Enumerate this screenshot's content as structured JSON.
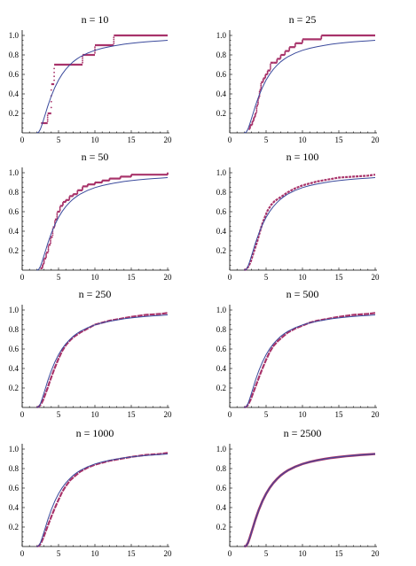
{
  "colors": {
    "theory": "#3b4a9c",
    "empirical": "#a8336a",
    "axis": "#000000"
  },
  "chart_data": [
    {
      "type": "line",
      "title": "n = 10",
      "xlim": [
        0,
        20
      ],
      "ylim": [
        0,
        1.0
      ],
      "xticks": [
        0,
        5,
        10,
        15,
        20
      ],
      "yticks": [
        0.2,
        0.4,
        0.6,
        0.8,
        1.0
      ],
      "xtick_labels": [
        "0",
        "5",
        "10",
        "15",
        "20"
      ],
      "ytick_labels": [
        "0.2",
        "0.4",
        "0.6",
        "0.8",
        "1.0"
      ],
      "theory": {
        "x": [
          2.0,
          2.25,
          2.5,
          2.75,
          3.0,
          3.25,
          3.5,
          3.75,
          4.0,
          4.5,
          5.0,
          5.5,
          6.0,
          6.5,
          7.0,
          7.5,
          8.0,
          9.0,
          10.0,
          11.0,
          12.0,
          13.0,
          14.0,
          15.0,
          16.0,
          17.0,
          18.0,
          19.0,
          20.0
        ],
        "y": [
          0.0,
          0.006,
          0.037,
          0.088,
          0.149,
          0.21,
          0.27,
          0.326,
          0.377,
          0.467,
          0.542,
          0.603,
          0.653,
          0.694,
          0.729,
          0.757,
          0.782,
          0.819,
          0.847,
          0.868,
          0.885,
          0.898,
          0.91,
          0.919,
          0.927,
          0.934,
          0.94,
          0.945,
          0.95
        ]
      },
      "empirical": {
        "x": [
          2.6,
          3.5,
          4.0,
          4.4,
          8.3,
          10.0,
          12.6,
          20.0
        ],
        "y": [
          0.1,
          0.2,
          0.5,
          0.7,
          0.8,
          0.9,
          1.0,
          1.0
        ]
      }
    },
    {
      "type": "line",
      "title": "n = 25",
      "xlim": [
        0,
        20
      ],
      "ylim": [
        0,
        1.0
      ],
      "xticks": [
        0,
        5,
        10,
        15,
        20
      ],
      "yticks": [
        0.2,
        0.4,
        0.6,
        0.8,
        1.0
      ],
      "xtick_labels": [
        "0",
        "5",
        "10",
        "15",
        "20"
      ],
      "ytick_labels": [
        "0.2",
        "0.4",
        "0.6",
        "0.8",
        "1.0"
      ],
      "theory": {
        "x": [
          2.0,
          2.25,
          2.5,
          2.75,
          3.0,
          3.25,
          3.5,
          3.75,
          4.0,
          4.5,
          5.0,
          5.5,
          6.0,
          6.5,
          7.0,
          7.5,
          8.0,
          9.0,
          10.0,
          11.0,
          12.0,
          13.0,
          14.0,
          15.0,
          16.0,
          17.0,
          18.0,
          19.0,
          20.0
        ],
        "y": [
          0.0,
          0.006,
          0.037,
          0.088,
          0.149,
          0.21,
          0.27,
          0.326,
          0.377,
          0.467,
          0.542,
          0.603,
          0.653,
          0.694,
          0.729,
          0.757,
          0.782,
          0.819,
          0.847,
          0.868,
          0.885,
          0.898,
          0.91,
          0.919,
          0.927,
          0.934,
          0.94,
          0.945,
          0.95
        ]
      },
      "empirical": {
        "x": [
          2.6,
          2.8,
          3.1,
          3.3,
          3.5,
          3.7,
          3.9,
          4.1,
          4.3,
          4.6,
          4.9,
          5.2,
          5.6,
          6.0,
          6.5,
          7.0,
          7.6,
          8.2,
          9.0,
          10.0,
          12.6,
          20.0
        ],
        "y": [
          0.04,
          0.08,
          0.12,
          0.16,
          0.2,
          0.28,
          0.36,
          0.44,
          0.52,
          0.56,
          0.6,
          0.64,
          0.72,
          0.72,
          0.76,
          0.8,
          0.84,
          0.88,
          0.92,
          0.96,
          1.0,
          1.0
        ]
      }
    },
    {
      "type": "line",
      "title": "n = 50",
      "xlim": [
        0,
        20
      ],
      "ylim": [
        0,
        1.0
      ],
      "xticks": [
        0,
        5,
        10,
        15,
        20
      ],
      "yticks": [
        0.2,
        0.4,
        0.6,
        0.8,
        1.0
      ],
      "xtick_labels": [
        "0",
        "5",
        "10",
        "15",
        "20"
      ],
      "ytick_labels": [
        "0.2",
        "0.4",
        "0.6",
        "0.8",
        "1.0"
      ],
      "theory": {
        "x": [
          2.0,
          2.25,
          2.5,
          2.75,
          3.0,
          3.25,
          3.5,
          3.75,
          4.0,
          4.5,
          5.0,
          5.5,
          6.0,
          6.5,
          7.0,
          7.5,
          8.0,
          9.0,
          10.0,
          11.0,
          12.0,
          13.0,
          14.0,
          15.0,
          16.0,
          17.0,
          18.0,
          19.0,
          20.0
        ],
        "y": [
          0.0,
          0.006,
          0.037,
          0.088,
          0.149,
          0.21,
          0.27,
          0.326,
          0.377,
          0.467,
          0.542,
          0.603,
          0.653,
          0.694,
          0.729,
          0.757,
          0.782,
          0.819,
          0.847,
          0.868,
          0.885,
          0.898,
          0.91,
          0.919,
          0.927,
          0.934,
          0.94,
          0.945,
          0.95
        ]
      },
      "empirical": {
        "x": [
          2.5,
          2.8,
          3.0,
          3.3,
          3.6,
          3.9,
          4.2,
          4.5,
          4.8,
          5.2,
          5.6,
          6.0,
          6.5,
          7.0,
          7.6,
          8.3,
          9.0,
          10.0,
          11.0,
          12.0,
          13.5,
          15.0,
          20.0
        ],
        "y": [
          0.02,
          0.06,
          0.12,
          0.18,
          0.26,
          0.34,
          0.44,
          0.52,
          0.6,
          0.66,
          0.7,
          0.72,
          0.76,
          0.78,
          0.82,
          0.86,
          0.88,
          0.9,
          0.92,
          0.94,
          0.96,
          0.98,
          1.0
        ]
      }
    },
    {
      "type": "line",
      "title": "n = 100",
      "xlim": [
        0,
        20
      ],
      "ylim": [
        0,
        1.0
      ],
      "xticks": [
        0,
        5,
        10,
        15,
        20
      ],
      "yticks": [
        0.2,
        0.4,
        0.6,
        0.8,
        1.0
      ],
      "xtick_labels": [
        "0",
        "5",
        "10",
        "15",
        "20"
      ],
      "ytick_labels": [
        "0.2",
        "0.4",
        "0.6",
        "0.8",
        "1.0"
      ],
      "theory": {
        "x": [
          2.0,
          2.25,
          2.5,
          2.75,
          3.0,
          3.25,
          3.5,
          3.75,
          4.0,
          4.5,
          5.0,
          5.5,
          6.0,
          6.5,
          7.0,
          7.5,
          8.0,
          9.0,
          10.0,
          11.0,
          12.0,
          13.0,
          14.0,
          15.0,
          16.0,
          17.0,
          18.0,
          19.0,
          20.0
        ],
        "y": [
          0.0,
          0.006,
          0.037,
          0.088,
          0.149,
          0.21,
          0.27,
          0.326,
          0.377,
          0.467,
          0.542,
          0.603,
          0.653,
          0.694,
          0.729,
          0.757,
          0.782,
          0.819,
          0.847,
          0.868,
          0.885,
          0.898,
          0.91,
          0.919,
          0.927,
          0.934,
          0.94,
          0.945,
          0.95
        ]
      },
      "empirical": {
        "x": [
          2.0,
          2.3,
          2.6,
          2.9,
          3.2,
          3.5,
          3.8,
          4.1,
          4.4,
          4.8,
          5.2,
          5.7,
          6.2,
          6.8,
          7.4,
          8.0,
          9.0,
          10.0,
          11.0,
          12.0,
          13.5,
          15.0,
          17.0,
          19.0,
          20.0
        ],
        "y": [
          0.0,
          0.01,
          0.04,
          0.09,
          0.16,
          0.23,
          0.3,
          0.38,
          0.46,
          0.54,
          0.61,
          0.67,
          0.71,
          0.74,
          0.77,
          0.8,
          0.84,
          0.87,
          0.89,
          0.91,
          0.93,
          0.95,
          0.96,
          0.97,
          0.98
        ]
      }
    },
    {
      "type": "line",
      "title": "n = 250",
      "xlim": [
        0,
        20
      ],
      "ylim": [
        0,
        1.0
      ],
      "xticks": [
        0,
        5,
        10,
        15,
        20
      ],
      "yticks": [
        0.2,
        0.4,
        0.6,
        0.8,
        1.0
      ],
      "xtick_labels": [
        "0",
        "5",
        "10",
        "15",
        "20"
      ],
      "ytick_labels": [
        "0.2",
        "0.4",
        "0.6",
        "0.8",
        "1.0"
      ],
      "theory": {
        "x": [
          2.0,
          2.25,
          2.5,
          2.75,
          3.0,
          3.25,
          3.5,
          3.75,
          4.0,
          4.5,
          5.0,
          5.5,
          6.0,
          6.5,
          7.0,
          7.5,
          8.0,
          9.0,
          10.0,
          11.0,
          12.0,
          13.0,
          14.0,
          15.0,
          16.0,
          17.0,
          18.0,
          19.0,
          20.0
        ],
        "y": [
          0.0,
          0.006,
          0.037,
          0.088,
          0.149,
          0.21,
          0.27,
          0.326,
          0.377,
          0.467,
          0.542,
          0.603,
          0.653,
          0.694,
          0.729,
          0.757,
          0.782,
          0.819,
          0.847,
          0.868,
          0.885,
          0.898,
          0.91,
          0.919,
          0.927,
          0.934,
          0.94,
          0.945,
          0.95
        ]
      },
      "empirical": {
        "x": [
          2.0,
          2.3,
          2.6,
          2.9,
          3.2,
          3.5,
          3.8,
          4.1,
          4.5,
          5.0,
          5.5,
          6.0,
          6.6,
          7.2,
          8.0,
          9.0,
          10.0,
          11.0,
          12.0,
          13.5,
          15.0,
          17.0,
          19.0,
          20.0
        ],
        "y": [
          0.0,
          0.01,
          0.035,
          0.08,
          0.14,
          0.2,
          0.27,
          0.33,
          0.41,
          0.5,
          0.58,
          0.64,
          0.69,
          0.73,
          0.77,
          0.81,
          0.85,
          0.87,
          0.89,
          0.91,
          0.93,
          0.95,
          0.96,
          0.97
        ]
      }
    },
    {
      "type": "line",
      "title": "n = 500",
      "xlim": [
        0,
        20
      ],
      "ylim": [
        0,
        1.0
      ],
      "xticks": [
        0,
        5,
        10,
        15,
        20
      ],
      "yticks": [
        0.2,
        0.4,
        0.6,
        0.8,
        1.0
      ],
      "xtick_labels": [
        "0",
        "5",
        "10",
        "15",
        "20"
      ],
      "ytick_labels": [
        "0.2",
        "0.4",
        "0.6",
        "0.8",
        "1.0"
      ],
      "theory": {
        "x": [
          2.0,
          2.25,
          2.5,
          2.75,
          3.0,
          3.25,
          3.5,
          3.75,
          4.0,
          4.5,
          5.0,
          5.5,
          6.0,
          6.5,
          7.0,
          7.5,
          8.0,
          9.0,
          10.0,
          11.0,
          12.0,
          13.0,
          14.0,
          15.0,
          16.0,
          17.0,
          18.0,
          19.0,
          20.0
        ],
        "y": [
          0.0,
          0.006,
          0.037,
          0.088,
          0.149,
          0.21,
          0.27,
          0.326,
          0.377,
          0.467,
          0.542,
          0.603,
          0.653,
          0.694,
          0.729,
          0.757,
          0.782,
          0.819,
          0.847,
          0.868,
          0.885,
          0.898,
          0.91,
          0.919,
          0.927,
          0.934,
          0.94,
          0.945,
          0.95
        ]
      },
      "empirical": {
        "x": [
          2.0,
          2.3,
          2.6,
          2.9,
          3.2,
          3.5,
          3.8,
          4.1,
          4.5,
          5.0,
          5.5,
          6.0,
          6.6,
          7.2,
          8.0,
          9.0,
          10.0,
          11.0,
          12.0,
          13.5,
          15.0,
          17.0,
          19.0,
          20.0
        ],
        "y": [
          0.0,
          0.007,
          0.038,
          0.085,
          0.145,
          0.205,
          0.265,
          0.325,
          0.4,
          0.49,
          0.57,
          0.63,
          0.68,
          0.72,
          0.77,
          0.81,
          0.84,
          0.87,
          0.89,
          0.91,
          0.93,
          0.95,
          0.96,
          0.97
        ]
      }
    },
    {
      "type": "line",
      "title": "n = 1000",
      "xlim": [
        0,
        20
      ],
      "ylim": [
        0,
        1.0
      ],
      "xticks": [
        0,
        5,
        10,
        15,
        20
      ],
      "yticks": [
        0.2,
        0.4,
        0.6,
        0.8,
        1.0
      ],
      "xtick_labels": [
        "0",
        "5",
        "10",
        "15",
        "20"
      ],
      "ytick_labels": [
        "0.2",
        "0.4",
        "0.6",
        "0.8",
        "1.0"
      ],
      "theory": {
        "x": [
          2.0,
          2.25,
          2.5,
          2.75,
          3.0,
          3.25,
          3.5,
          3.75,
          4.0,
          4.5,
          5.0,
          5.5,
          6.0,
          6.5,
          7.0,
          7.5,
          8.0,
          9.0,
          10.0,
          11.0,
          12.0,
          13.0,
          14.0,
          15.0,
          16.0,
          17.0,
          18.0,
          19.0,
          20.0
        ],
        "y": [
          0.0,
          0.006,
          0.037,
          0.088,
          0.149,
          0.21,
          0.27,
          0.326,
          0.377,
          0.467,
          0.542,
          0.603,
          0.653,
          0.694,
          0.729,
          0.757,
          0.782,
          0.819,
          0.847,
          0.868,
          0.885,
          0.898,
          0.91,
          0.919,
          0.927,
          0.934,
          0.94,
          0.945,
          0.95
        ]
      },
      "empirical": {
        "x": [
          2.0,
          2.3,
          2.6,
          2.9,
          3.2,
          3.5,
          3.8,
          4.1,
          4.5,
          5.0,
          5.5,
          6.0,
          6.6,
          7.2,
          8.0,
          9.0,
          10.0,
          11.0,
          12.0,
          13.5,
          15.0,
          17.0,
          19.0,
          20.0
        ],
        "y": [
          0.0,
          0.006,
          0.036,
          0.087,
          0.148,
          0.208,
          0.268,
          0.324,
          0.396,
          0.48,
          0.56,
          0.62,
          0.68,
          0.72,
          0.77,
          0.81,
          0.84,
          0.86,
          0.88,
          0.9,
          0.92,
          0.94,
          0.95,
          0.96
        ]
      }
    },
    {
      "type": "line",
      "title": "n = 2500",
      "xlim": [
        0,
        20
      ],
      "ylim": [
        0,
        1.0
      ],
      "xticks": [
        0,
        5,
        10,
        15,
        20
      ],
      "yticks": [
        0.2,
        0.4,
        0.6,
        0.8,
        1.0
      ],
      "xtick_labels": [
        "0",
        "5",
        "10",
        "15",
        "20"
      ],
      "ytick_labels": [
        "0.2",
        "0.4",
        "0.6",
        "0.8",
        "1.0"
      ],
      "theory": {
        "x": [
          2.0,
          2.25,
          2.5,
          2.75,
          3.0,
          3.25,
          3.5,
          3.75,
          4.0,
          4.5,
          5.0,
          5.5,
          6.0,
          6.5,
          7.0,
          7.5,
          8.0,
          9.0,
          10.0,
          11.0,
          12.0,
          13.0,
          14.0,
          15.0,
          16.0,
          17.0,
          18.0,
          19.0,
          20.0
        ],
        "y": [
          0.0,
          0.006,
          0.037,
          0.088,
          0.149,
          0.21,
          0.27,
          0.326,
          0.377,
          0.467,
          0.542,
          0.603,
          0.653,
          0.694,
          0.729,
          0.757,
          0.782,
          0.819,
          0.847,
          0.868,
          0.885,
          0.898,
          0.91,
          0.919,
          0.927,
          0.934,
          0.94,
          0.945,
          0.95
        ]
      },
      "empirical": {
        "x": [
          2.0,
          2.25,
          2.5,
          2.75,
          3.0,
          3.25,
          3.5,
          3.75,
          4.0,
          4.5,
          5.0,
          5.5,
          6.0,
          6.5,
          7.0,
          7.5,
          8.0,
          9.0,
          10.0,
          11.0,
          12.0,
          13.0,
          14.0,
          15.0,
          16.0,
          17.0,
          18.0,
          19.0,
          20.0
        ],
        "y": [
          0.0,
          0.006,
          0.037,
          0.088,
          0.149,
          0.21,
          0.27,
          0.326,
          0.377,
          0.467,
          0.542,
          0.603,
          0.653,
          0.694,
          0.729,
          0.757,
          0.782,
          0.819,
          0.847,
          0.868,
          0.885,
          0.898,
          0.91,
          0.919,
          0.927,
          0.934,
          0.94,
          0.945,
          0.95
        ]
      }
    }
  ]
}
